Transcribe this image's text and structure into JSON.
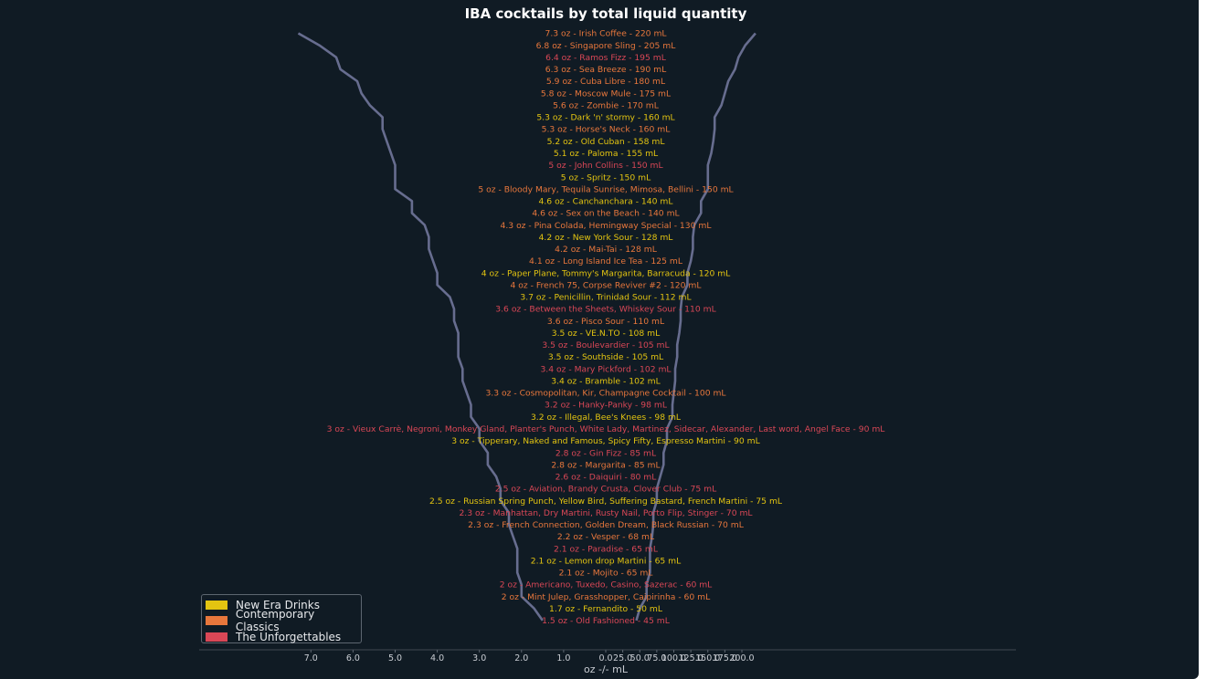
{
  "chart_data": {
    "type": "line",
    "title": "IBA cocktails by total liquid quantity",
    "xlabel": "oz  -/-  mL",
    "x_ticks_oz": [
      "7.0",
      "6.0",
      "5.0",
      "4.0",
      "3.0",
      "2.0",
      "1.0",
      "0.0"
    ],
    "x_ticks_ml": [
      "25.0",
      "50.0",
      "75.0",
      "100.0",
      "125.0",
      "150.0",
      "175.0",
      "200.0"
    ],
    "line_color": "#676d8f",
    "category_colors": {
      "new_era": "#e3c411",
      "contemporary": "#e8773c",
      "unforgettables": "#d94756"
    },
    "legend": [
      {
        "name": "New Era Drinks",
        "key": "new_era"
      },
      {
        "name": "Contemporary Classics",
        "key": "contemporary"
      },
      {
        "name": "The Unforgettables",
        "key": "unforgettables"
      }
    ],
    "rows": [
      {
        "label": "7.3 oz - Irish Coffee - 220 mL",
        "oz": 7.3,
        "ml": 220,
        "key": "contemporary"
      },
      {
        "label": "6.8 oz - Singapore Sling - 205 mL",
        "oz": 6.8,
        "ml": 205,
        "key": "contemporary"
      },
      {
        "label": "6.4 oz - Ramos Fizz - 195 mL",
        "oz": 6.4,
        "ml": 195,
        "key": "unforgettables"
      },
      {
        "label": "6.3 oz - Sea Breeze - 190 mL",
        "oz": 6.3,
        "ml": 190,
        "key": "contemporary"
      },
      {
        "label": "5.9 oz - Cuba Libre - 180 mL",
        "oz": 5.9,
        "ml": 180,
        "key": "contemporary"
      },
      {
        "label": "5.8 oz - Moscow Mule - 175 mL",
        "oz": 5.8,
        "ml": 175,
        "key": "contemporary"
      },
      {
        "label": "5.6 oz - Zombie - 170 mL",
        "oz": 5.6,
        "ml": 170,
        "key": "contemporary"
      },
      {
        "label": "5.3 oz - Dark 'n' stormy - 160 mL",
        "oz": 5.3,
        "ml": 160,
        "key": "new_era"
      },
      {
        "label": "5.3 oz - Horse's Neck - 160 mL",
        "oz": 5.3,
        "ml": 160,
        "key": "contemporary"
      },
      {
        "label": "5.2 oz - Old Cuban - 158 mL",
        "oz": 5.2,
        "ml": 158,
        "key": "new_era"
      },
      {
        "label": "5.1 oz - Paloma - 155 mL",
        "oz": 5.1,
        "ml": 155,
        "key": "new_era"
      },
      {
        "label": "5 oz - John Collins - 150 mL",
        "oz": 5.0,
        "ml": 150,
        "key": "unforgettables"
      },
      {
        "label": "5 oz - Spritz - 150 mL",
        "oz": 5.0,
        "ml": 150,
        "key": "new_era"
      },
      {
        "label": "5 oz - Bloody Mary, Tequila Sunrise, Mimosa, Bellini - 150 mL",
        "oz": 5.0,
        "ml": 150,
        "key": "contemporary"
      },
      {
        "label": "4.6 oz - Canchanchara - 140 mL",
        "oz": 4.6,
        "ml": 140,
        "key": "new_era"
      },
      {
        "label": "4.6 oz - Sex on the Beach - 140 mL",
        "oz": 4.6,
        "ml": 140,
        "key": "contemporary"
      },
      {
        "label": "4.3 oz - Pina Colada, Hemingway Special - 130 mL",
        "oz": 4.3,
        "ml": 130,
        "key": "contemporary"
      },
      {
        "label": "4.2 oz - New York Sour - 128 mL",
        "oz": 4.2,
        "ml": 128,
        "key": "new_era"
      },
      {
        "label": "4.2 oz - Mai-Tai - 128 mL",
        "oz": 4.2,
        "ml": 128,
        "key": "contemporary"
      },
      {
        "label": "4.1 oz - Long Island Ice Tea - 125 mL",
        "oz": 4.1,
        "ml": 125,
        "key": "contemporary"
      },
      {
        "label": "4 oz - Paper Plane, Tommy's Margarita, Barracuda - 120 mL",
        "oz": 4.0,
        "ml": 120,
        "key": "new_era"
      },
      {
        "label": "4 oz - French 75, Corpse Reviver #2 - 120 mL",
        "oz": 4.0,
        "ml": 120,
        "key": "contemporary"
      },
      {
        "label": "3.7 oz - Penicillin, Trinidad Sour - 112 mL",
        "oz": 3.7,
        "ml": 112,
        "key": "new_era"
      },
      {
        "label": "3.6 oz - Between the Sheets, Whiskey Sour - 110 mL",
        "oz": 3.6,
        "ml": 110,
        "key": "unforgettables"
      },
      {
        "label": "3.6 oz - Pisco Sour - 110 mL",
        "oz": 3.6,
        "ml": 110,
        "key": "contemporary"
      },
      {
        "label": "3.5 oz - VE.N.TO - 108 mL",
        "oz": 3.5,
        "ml": 108,
        "key": "new_era"
      },
      {
        "label": "3.5 oz - Boulevardier - 105 mL",
        "oz": 3.5,
        "ml": 105,
        "key": "unforgettables"
      },
      {
        "label": "3.5 oz - Southside - 105 mL",
        "oz": 3.5,
        "ml": 105,
        "key": "new_era"
      },
      {
        "label": "3.4 oz - Mary Pickford - 102 mL",
        "oz": 3.4,
        "ml": 102,
        "key": "unforgettables"
      },
      {
        "label": "3.4 oz - Bramble - 102 mL",
        "oz": 3.4,
        "ml": 102,
        "key": "new_era"
      },
      {
        "label": "3.3 oz - Cosmopolitan, Kir, Champagne Cocktail - 100 mL",
        "oz": 3.3,
        "ml": 100,
        "key": "contemporary"
      },
      {
        "label": "3.2 oz - Hanky-Panky - 98 mL",
        "oz": 3.2,
        "ml": 98,
        "key": "unforgettables"
      },
      {
        "label": "3.2 oz - Illegal, Bee's Knees - 98 mL",
        "oz": 3.2,
        "ml": 98,
        "key": "new_era"
      },
      {
        "label": "3 oz - Vieux Carrè, Negroni, Monkey Gland, Planter's Punch, White Lady, Martinez, Sidecar, Alexander, Last word, Angel Face - 90 mL",
        "oz": 3.0,
        "ml": 90,
        "key": "unforgettables"
      },
      {
        "label": "3 oz - Tipperary, Naked and Famous, Spicy Fifty, Espresso Martini - 90 mL",
        "oz": 3.0,
        "ml": 90,
        "key": "new_era"
      },
      {
        "label": "2.8 oz - Gin Fizz - 85 mL",
        "oz": 2.8,
        "ml": 85,
        "key": "unforgettables"
      },
      {
        "label": "2.8 oz - Margarita - 85 mL",
        "oz": 2.8,
        "ml": 85,
        "key": "contemporary"
      },
      {
        "label": "2.6 oz - Daiquiri - 80 mL",
        "oz": 2.6,
        "ml": 80,
        "key": "unforgettables"
      },
      {
        "label": "2.5 oz - Aviation, Brandy Crusta, Clover Club - 75 mL",
        "oz": 2.5,
        "ml": 75,
        "key": "unforgettables"
      },
      {
        "label": "2.5 oz - Russian Spring Punch, Yellow Bird, Suffering Bastard, French Martini - 75 mL",
        "oz": 2.5,
        "ml": 75,
        "key": "new_era"
      },
      {
        "label": "2.3 oz - Manhattan, Dry Martini, Rusty Nail, Porto Flip, Stinger - 70 mL",
        "oz": 2.3,
        "ml": 70,
        "key": "unforgettables"
      },
      {
        "label": "2.3 oz - French Connection, Golden Dream, Black Russian - 70 mL",
        "oz": 2.3,
        "ml": 70,
        "key": "contemporary"
      },
      {
        "label": "2.2 oz - Vesper - 68 mL",
        "oz": 2.2,
        "ml": 68,
        "key": "contemporary"
      },
      {
        "label": "2.1 oz - Paradise - 65 mL",
        "oz": 2.1,
        "ml": 65,
        "key": "unforgettables"
      },
      {
        "label": "2.1 oz - Lemon drop Martini - 65 mL",
        "oz": 2.1,
        "ml": 65,
        "key": "new_era"
      },
      {
        "label": "2.1 oz - Mojito - 65 mL",
        "oz": 2.1,
        "ml": 65,
        "key": "contemporary"
      },
      {
        "label": "2 oz - Americano, Tuxedo, Casino, Sazerac - 60 mL",
        "oz": 2.0,
        "ml": 60,
        "key": "unforgettables"
      },
      {
        "label": "2 oz - Mint Julep, Grasshopper, Caipirinha - 60 mL",
        "oz": 2.0,
        "ml": 60,
        "key": "contemporary"
      },
      {
        "label": "1.7 oz - Fernandito - 50 mL",
        "oz": 1.7,
        "ml": 50,
        "key": "new_era"
      },
      {
        "label": "1.5 oz - Old Fashioned - 45 mL",
        "oz": 1.5,
        "ml": 45,
        "key": "unforgettables"
      }
    ]
  }
}
